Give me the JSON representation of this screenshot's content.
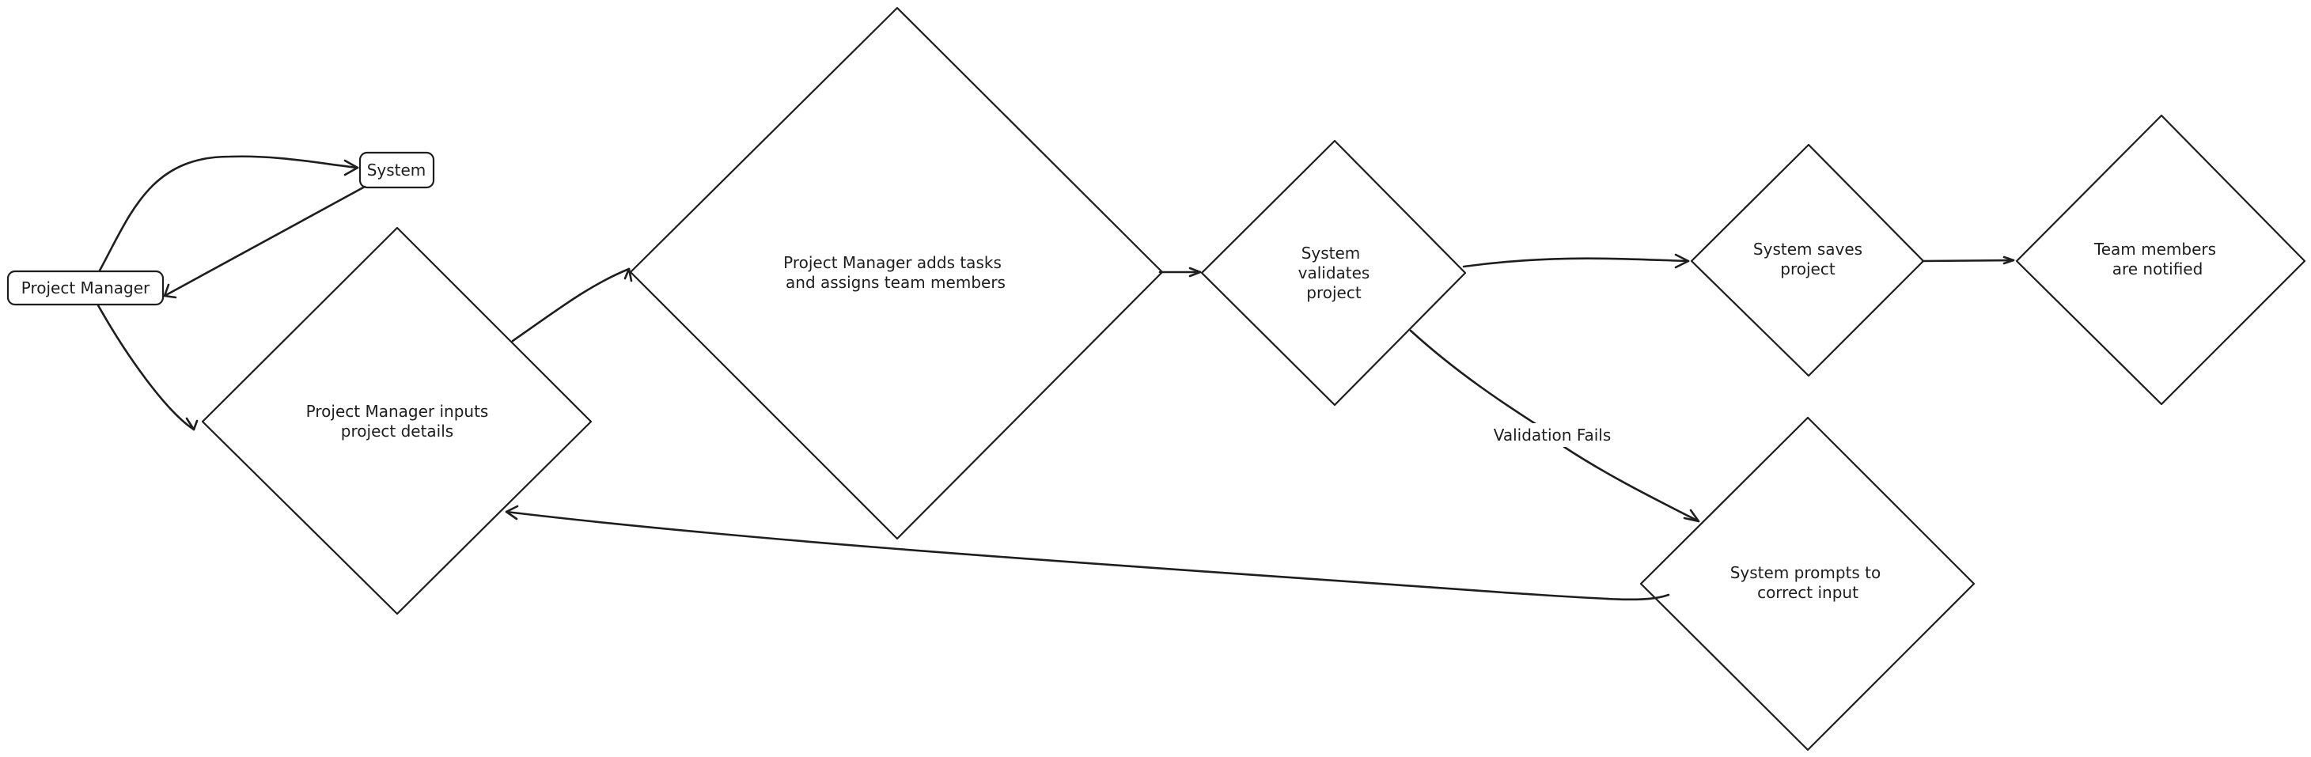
{
  "nodes": {
    "project_manager": {
      "label": "Project Manager"
    },
    "system": {
      "label": "System"
    },
    "inputs_details": {
      "lines": [
        "Project Manager inputs",
        "project details"
      ]
    },
    "adds_tasks": {
      "lines": [
        "Project Manager adds tasks",
        "and assigns team members"
      ]
    },
    "validates": {
      "lines": [
        "System",
        "validates",
        "project"
      ]
    },
    "saves": {
      "lines": [
        "System saves",
        "project"
      ]
    },
    "notified": {
      "lines": [
        "Team members",
        "are notified"
      ]
    },
    "prompts": {
      "lines": [
        "System prompts to",
        "correct input"
      ]
    }
  },
  "edges": {
    "validation_fails": {
      "label": "Validation Fails"
    }
  }
}
